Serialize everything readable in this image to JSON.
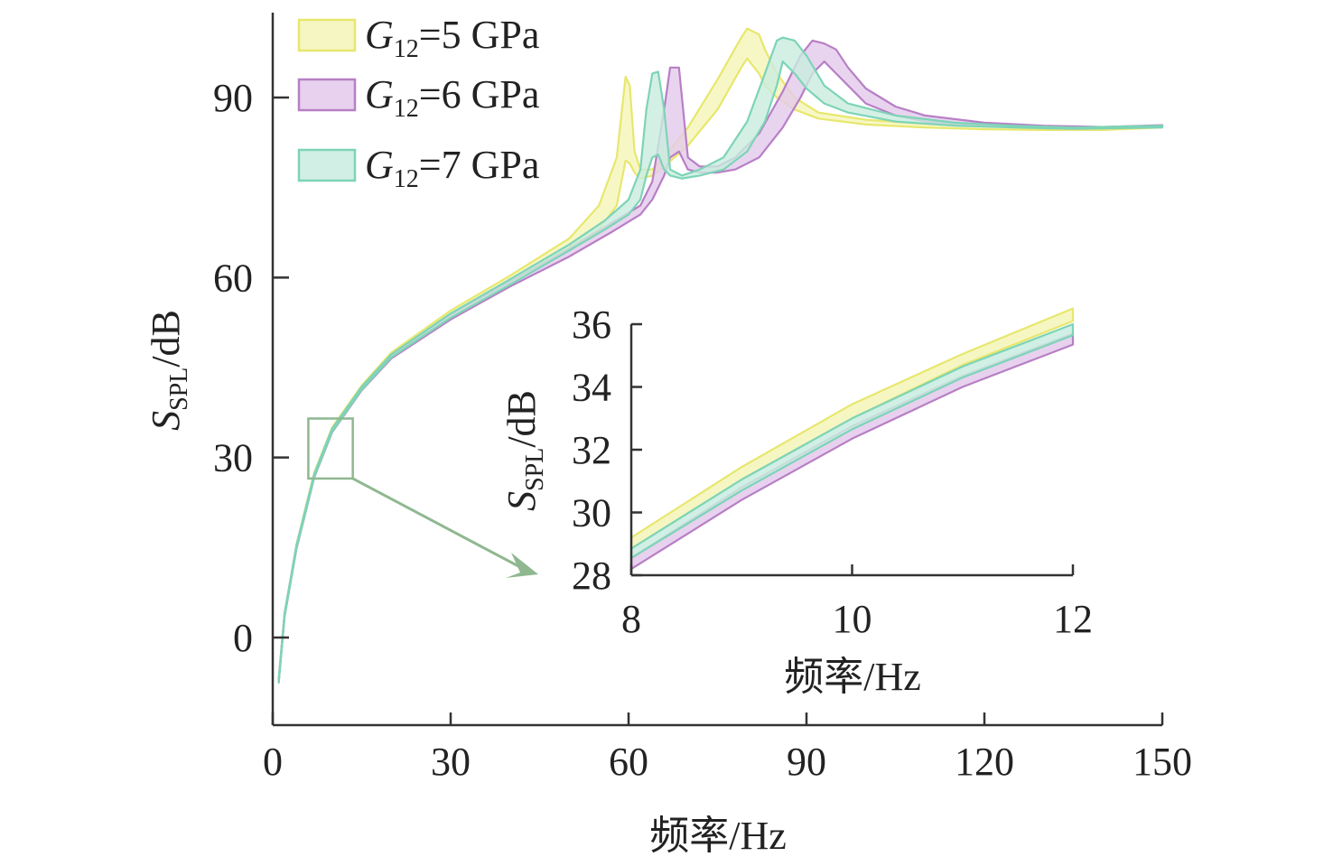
{
  "chart_data": [
    {
      "type": "area",
      "id": "main",
      "xlabel": "频率/Hz",
      "ylabel_main": "S",
      "ylabel_sub": "SPL",
      "ylabel_unit": "/dB",
      "xlim": [
        0,
        150
      ],
      "ylim": [
        -15,
        105
      ],
      "xticks": [
        0,
        30,
        60,
        90,
        120,
        150
      ],
      "xtick_labels": [
        "0",
        "30",
        "60",
        "90",
        "120",
        "150"
      ],
      "yticks": [
        0,
        30,
        60,
        90
      ],
      "ytick_labels": [
        "0",
        "30",
        "60",
        "90"
      ],
      "legend_position": "top-left",
      "series": [
        {
          "name": "G12=5 GPa",
          "legend_main": "G",
          "legend_sub": "12",
          "legend_value": "=5 GPa",
          "color": "#e7e76e",
          "fill": "#f5f5b8",
          "upper": [
            [
              1,
              -7
            ],
            [
              2,
              4
            ],
            [
              4,
              15.5
            ],
            [
              7,
              27.5
            ],
            [
              10,
              35
            ],
            [
              15,
              42
            ],
            [
              20,
              47.5
            ],
            [
              30,
              54.5
            ],
            [
              40,
              60.3
            ],
            [
              50,
              66.5
            ],
            [
              55,
              72
            ],
            [
              58,
              80
            ],
            [
              59.5,
              93.5
            ],
            [
              60.2,
              92
            ],
            [
              61,
              81
            ],
            [
              62,
              78
            ],
            [
              64,
              78
            ],
            [
              66,
              80
            ],
            [
              70,
              85
            ],
            [
              75,
              93
            ],
            [
              79,
              100
            ],
            [
              80,
              101.5
            ],
            [
              82,
              100.5
            ],
            [
              83,
              98
            ],
            [
              85,
              94
            ],
            [
              88,
              90
            ],
            [
              92,
              87.5
            ],
            [
              100,
              86.3
            ],
            [
              110,
              85.6
            ],
            [
              120,
              85.3
            ],
            [
              130,
              85
            ],
            [
              140,
              85
            ],
            [
              150,
              85.3
            ]
          ],
          "lower": [
            [
              1,
              -7.5
            ],
            [
              2,
              3.5
            ],
            [
              4,
              15
            ],
            [
              7,
              27
            ],
            [
              10,
              34.5
            ],
            [
              15,
              41.5
            ],
            [
              20,
              47
            ],
            [
              30,
              53.7
            ],
            [
              40,
              59.3
            ],
            [
              50,
              65
            ],
            [
              55,
              68
            ],
            [
              58,
              72
            ],
            [
              59.5,
              79.5
            ],
            [
              60.2,
              79
            ],
            [
              61,
              77.5
            ],
            [
              62,
              76.5
            ],
            [
              64,
              77
            ],
            [
              66,
              78.5
            ],
            [
              70,
              82
            ],
            [
              75,
              88
            ],
            [
              79,
              95
            ],
            [
              80,
              96.5
            ],
            [
              82,
              94
            ],
            [
              83,
              92
            ],
            [
              85,
              90
            ],
            [
              88,
              88
            ],
            [
              92,
              86.5
            ],
            [
              100,
              85.5
            ],
            [
              110,
              85
            ],
            [
              120,
              84.7
            ],
            [
              130,
              84.6
            ],
            [
              140,
              84.6
            ],
            [
              150,
              85
            ]
          ]
        },
        {
          "name": "G12=6 GPa",
          "legend_main": "G",
          "legend_sub": "12",
          "legend_value": "=6 GPa",
          "color": "#b77fc5",
          "fill": "#e4c9ec",
          "upper": [
            [
              1,
              -7
            ],
            [
              2,
              4
            ],
            [
              4,
              15.3
            ],
            [
              7,
              27.2
            ],
            [
              10,
              34.7
            ],
            [
              15,
              41.7
            ],
            [
              20,
              47
            ],
            [
              30,
              53.8
            ],
            [
              40,
              59.3
            ],
            [
              50,
              64.8
            ],
            [
              57,
              69
            ],
            [
              62,
              72
            ],
            [
              64,
              76
            ],
            [
              66,
              88
            ],
            [
              67,
              95
            ],
            [
              68.5,
              95
            ],
            [
              69,
              90
            ],
            [
              70,
              80
            ],
            [
              72,
              78.5
            ],
            [
              75,
              78.5
            ],
            [
              78,
              80
            ],
            [
              82,
              84
            ],
            [
              86,
              91
            ],
            [
              89,
              97
            ],
            [
              91,
              99.5
            ],
            [
              93,
              99
            ],
            [
              95,
              98
            ],
            [
              97,
              95
            ],
            [
              100,
              91.5
            ],
            [
              105,
              88.5
            ],
            [
              110,
              87
            ],
            [
              120,
              85.8
            ],
            [
              130,
              85.3
            ],
            [
              140,
              85.1
            ],
            [
              150,
              85.4
            ]
          ],
          "lower": [
            [
              1,
              -7.5
            ],
            [
              2,
              3.5
            ],
            [
              4,
              14.8
            ],
            [
              7,
              26.7
            ],
            [
              10,
              34.2
            ],
            [
              15,
              41.2
            ],
            [
              20,
              46.5
            ],
            [
              30,
              53
            ],
            [
              40,
              58.5
            ],
            [
              50,
              63.5
            ],
            [
              57,
              67.5
            ],
            [
              62,
              70.5
            ],
            [
              64,
              73
            ],
            [
              66,
              77
            ],
            [
              67,
              80
            ],
            [
              68.5,
              81
            ],
            [
              69,
              80
            ],
            [
              70,
              78
            ],
            [
              72,
              77.5
            ],
            [
              75,
              77.5
            ],
            [
              78,
              78
            ],
            [
              82,
              80
            ],
            [
              86,
              85
            ],
            [
              89,
              90
            ],
            [
              91,
              94
            ],
            [
              93,
              96
            ],
            [
              95,
              94
            ],
            [
              97,
              92
            ],
            [
              100,
              89
            ],
            [
              105,
              87
            ],
            [
              110,
              86
            ],
            [
              120,
              85.2
            ],
            [
              130,
              85
            ],
            [
              140,
              84.9
            ],
            [
              150,
              85.1
            ]
          ]
        },
        {
          "name": "G12=7 GPa",
          "legend_main": "G",
          "legend_sub": "12",
          "legend_value": "=7 GPa",
          "color": "#7dd4b7",
          "fill": "#c9ecdf",
          "upper": [
            [
              1,
              -7
            ],
            [
              2,
              4
            ],
            [
              4,
              15.4
            ],
            [
              7,
              27.3
            ],
            [
              10,
              34.8
            ],
            [
              15,
              41.8
            ],
            [
              20,
              47.2
            ],
            [
              30,
              54
            ],
            [
              40,
              59.7
            ],
            [
              50,
              65.5
            ],
            [
              56,
              69.5
            ],
            [
              60,
              73
            ],
            [
              62,
              78
            ],
            [
              63,
              88
            ],
            [
              64,
              94
            ],
            [
              65,
              94.3
            ],
            [
              66,
              88
            ],
            [
              67,
              78
            ],
            [
              69,
              77
            ],
            [
              72,
              78
            ],
            [
              76,
              80
            ],
            [
              80,
              86
            ],
            [
              83,
              94
            ],
            [
              85,
              99.5
            ],
            [
              86,
              100
            ],
            [
              88,
              99.5
            ],
            [
              90,
              97
            ],
            [
              93,
              92
            ],
            [
              97,
              89
            ],
            [
              105,
              87
            ],
            [
              115,
              85.8
            ],
            [
              125,
              85.3
            ],
            [
              135,
              85
            ],
            [
              150,
              85.3
            ]
          ],
          "lower": [
            [
              1,
              -7.5
            ],
            [
              2,
              3.5
            ],
            [
              4,
              14.9
            ],
            [
              7,
              26.8
            ],
            [
              10,
              34.3
            ],
            [
              15,
              41.3
            ],
            [
              20,
              46.7
            ],
            [
              30,
              53.3
            ],
            [
              40,
              58.8
            ],
            [
              50,
              64.5
            ],
            [
              56,
              68
            ],
            [
              60,
              70.5
            ],
            [
              62,
              73
            ],
            [
              63,
              77
            ],
            [
              64,
              80
            ],
            [
              65,
              80.5
            ],
            [
              66,
              78
            ],
            [
              67,
              77
            ],
            [
              69,
              76.5
            ],
            [
              72,
              77
            ],
            [
              76,
              78
            ],
            [
              80,
              81
            ],
            [
              83,
              86
            ],
            [
              85,
              92
            ],
            [
              86,
              96
            ],
            [
              88,
              94
            ],
            [
              90,
              91.5
            ],
            [
              93,
              89
            ],
            [
              97,
              87.5
            ],
            [
              105,
              86
            ],
            [
              115,
              85.3
            ],
            [
              125,
              85
            ],
            [
              135,
              84.8
            ],
            [
              150,
              85
            ]
          ]
        }
      ],
      "zoom_box": {
        "x_range": [
          6,
          13.5
        ],
        "y_range": [
          26.5,
          36.5
        ]
      }
    },
    {
      "type": "area",
      "id": "inset",
      "xlabel": "频率/Hz",
      "ylabel_main": "S",
      "ylabel_sub": "SPL",
      "ylabel_unit": "/dB",
      "xlim": [
        8,
        12
      ],
      "ylim": [
        28,
        36
      ],
      "xticks": [
        8,
        10,
        12
      ],
      "xtick_labels": [
        "8",
        "10",
        "12"
      ],
      "yticks": [
        28,
        30,
        32,
        34,
        36
      ],
      "ytick_labels": [
        "28",
        "30",
        "32",
        "34",
        "36"
      ],
      "series": [
        {
          "name": "G12=5 GPa",
          "color": "#e7e76e",
          "fill": "#f5f5b8",
          "upper": [
            [
              8,
              29.2
            ],
            [
              9,
              31.45
            ],
            [
              10,
              33.45
            ],
            [
              11,
              35.05
            ],
            [
              12,
              36.5
            ]
          ],
          "lower": [
            [
              8,
              28.85
            ],
            [
              9,
              31.05
            ],
            [
              10,
              33.0
            ],
            [
              11,
              34.7
            ],
            [
              12,
              36.1
            ]
          ]
        },
        {
          "name": "G12=6 GPa",
          "color": "#b77fc5",
          "fill": "#e4c9ec",
          "upper": [
            [
              8,
              28.55
            ],
            [
              9,
              30.8
            ],
            [
              10,
              32.75
            ],
            [
              11,
              34.35
            ],
            [
              12,
              35.7
            ]
          ],
          "lower": [
            [
              8,
              28.2
            ],
            [
              9,
              30.4
            ],
            [
              10,
              32.35
            ],
            [
              11,
              34.0
            ],
            [
              12,
              35.35
            ]
          ]
        },
        {
          "name": "G12=7 GPa",
          "color": "#7dd4b7",
          "fill": "#c9ecdf",
          "upper": [
            [
              8,
              28.85
            ],
            [
              9,
              31.05
            ],
            [
              10,
              33.0
            ],
            [
              11,
              34.65
            ],
            [
              12,
              36.0
            ]
          ],
          "lower": [
            [
              8,
              28.55
            ],
            [
              9,
              30.7
            ],
            [
              10,
              32.65
            ],
            [
              11,
              34.3
            ],
            [
              12,
              35.65
            ]
          ]
        }
      ]
    }
  ]
}
